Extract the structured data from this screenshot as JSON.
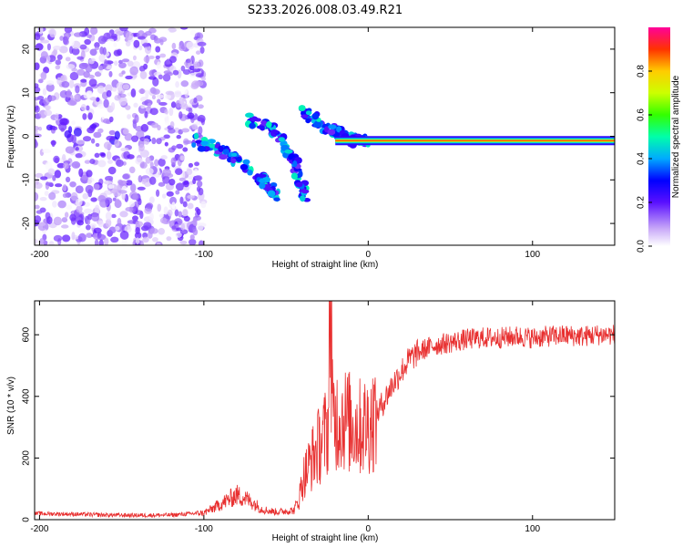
{
  "figure_title": "S233.2026.008.03.49.R21",
  "chart_data": [
    {
      "type": "heatmap",
      "name": "spectrogram",
      "xlabel": "Height of straight line (km)",
      "ylabel": "Frequency (Hz)",
      "xlim": [
        -203,
        150
      ],
      "ylim": [
        -25,
        25
      ],
      "x_ticks": [
        -200,
        -100,
        0,
        100
      ],
      "x_tick_labels": [
        "-200",
        "-100",
        "0",
        "100"
      ],
      "y_ticks": [
        20,
        10,
        0,
        -10,
        -20
      ],
      "y_tick_labels": [
        "20",
        "10",
        "0",
        "-10",
        "-20"
      ],
      "colorbar": {
        "label": "Normalized spectral amplitude",
        "range": [
          0,
          1
        ],
        "ticks": [
          0.0,
          0.2,
          0.4,
          0.6,
          0.8
        ],
        "tick_labels": [
          "0.0",
          "0.2",
          "0.4",
          "0.6",
          "0.8"
        ],
        "colors": [
          "#ffffff",
          "#a060f0",
          "#3300ff",
          "#00aaff",
          "#00ff88",
          "#88ff00",
          "#ffdd00",
          "#ff6600",
          "#ff0000",
          "#ff0099"
        ]
      },
      "features": [
        {
          "name": "noise-region",
          "x_range": [
            -203,
            -100
          ],
          "y_range": [
            -25,
            25
          ],
          "amplitude": 0.1
        },
        {
          "name": "branch-1",
          "x": [
            -105,
            -85,
            -65,
            -55
          ],
          "y": [
            -1,
            -4,
            -10,
            -14
          ],
          "amplitude": 0.35
        },
        {
          "name": "branch-2",
          "x": [
            -72,
            -55,
            -45,
            -38
          ],
          "y": [
            4,
            1,
            -6,
            -14
          ],
          "amplitude": 0.35
        },
        {
          "name": "branch-3",
          "x": [
            -40,
            -25,
            -10,
            0
          ],
          "y": [
            6,
            2,
            -1,
            -1
          ],
          "amplitude": 0.35
        },
        {
          "name": "carrier-line",
          "x": [
            -20,
            150
          ],
          "y": [
            -1,
            -1
          ],
          "amplitude": 0.75
        }
      ]
    },
    {
      "type": "line",
      "name": "snr",
      "xlabel": "Height of straight line (km)",
      "ylabel": "SNR (10 * v/v)",
      "xlim": [
        -203,
        150
      ],
      "ylim": [
        0,
        710
      ],
      "x_ticks": [
        -200,
        -100,
        0,
        100
      ],
      "x_tick_labels": [
        "-200",
        "-100",
        "0",
        "100"
      ],
      "y_ticks": [
        0,
        200,
        400,
        600
      ],
      "y_tick_labels": [
        "0",
        "200",
        "400",
        "600"
      ],
      "color": "#e83030",
      "series": [
        {
          "name": "SNR envelope",
          "x": [
            -203,
            -180,
            -160,
            -140,
            -120,
            -100,
            -95,
            -90,
            -85,
            -80,
            -75,
            -70,
            -65,
            -60,
            -55,
            -50,
            -45,
            -42,
            -40,
            -35,
            -30,
            -25,
            -22,
            -20,
            -15,
            -10,
            -5,
            0,
            5,
            10,
            15,
            20,
            25,
            30,
            35,
            40,
            50,
            60,
            70,
            80,
            90,
            100,
            110,
            120,
            130,
            140,
            150
          ],
          "y": [
            20,
            18,
            15,
            14,
            15,
            22,
            35,
            50,
            65,
            80,
            70,
            55,
            35,
            28,
            25,
            28,
            30,
            70,
            130,
            190,
            240,
            290,
            340,
            330,
            330,
            310,
            300,
            310,
            340,
            390,
            440,
            480,
            520,
            540,
            555,
            565,
            575,
            585,
            590,
            590,
            595,
            590,
            595,
            598,
            595,
            600,
            600
          ]
        }
      ]
    }
  ]
}
